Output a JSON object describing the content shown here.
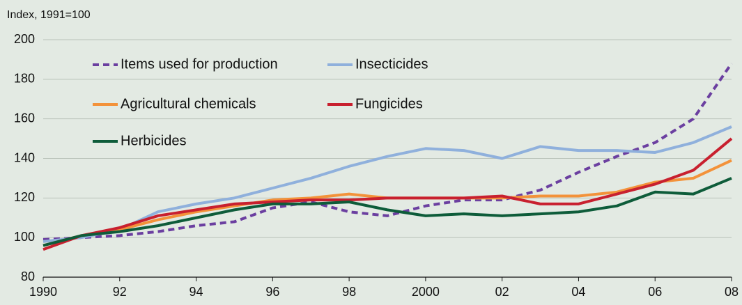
{
  "chart_data": {
    "type": "line",
    "y_axis_label": "Index, 1991=100",
    "x": [
      1990,
      1991,
      1992,
      1993,
      1994,
      1995,
      1996,
      1997,
      1998,
      1999,
      2000,
      2001,
      2002,
      2003,
      2004,
      2005,
      2006,
      2007,
      2008
    ],
    "xlim": [
      1990,
      2008
    ],
    "xticks": [
      1990,
      {
        "value": 1992,
        "label": "92"
      },
      {
        "value": 1994,
        "label": "94"
      },
      {
        "value": 1996,
        "label": "96"
      },
      {
        "value": 1998,
        "label": "98"
      },
      2000,
      {
        "value": 2002,
        "label": "02"
      },
      {
        "value": 2004,
        "label": "04"
      },
      {
        "value": 2006,
        "label": "06"
      },
      {
        "value": 2008,
        "label": "08"
      }
    ],
    "ylim": [
      80,
      200
    ],
    "yticks": [
      80,
      100,
      120,
      140,
      160,
      180,
      200
    ],
    "grid": true,
    "series": [
      {
        "name": "Items used for production",
        "color": "#6b3fa0",
        "dashed": true,
        "values": [
          99,
          100,
          101,
          103,
          106,
          108,
          115,
          118,
          113,
          111,
          116,
          119,
          119,
          124,
          133,
          141,
          148,
          160,
          188
        ]
      },
      {
        "name": "Insecticides",
        "color": "#8fb0dc",
        "values": [
          98,
          100,
          104,
          113,
          117,
          120,
          125,
          130,
          136,
          141,
          145,
          144,
          140,
          146,
          144,
          144,
          143,
          148,
          156
        ]
      },
      {
        "name": "Agricultural chemicals",
        "color": "#f3923a",
        "values": [
          96,
          101,
          104,
          109,
          113,
          116,
          119,
          120,
          122,
          120,
          120,
          120,
          120,
          121,
          121,
          123,
          128,
          130,
          139
        ]
      },
      {
        "name": "Fungicides",
        "color": "#c8202f",
        "values": [
          94,
          101,
          105,
          111,
          114,
          117,
          118,
          119,
          119,
          120,
          120,
          120,
          121,
          117,
          117,
          122,
          127,
          134,
          150
        ]
      },
      {
        "name": "Herbicides",
        "color": "#0e5c3a",
        "values": [
          96,
          101,
          103,
          106,
          110,
          114,
          117,
          117,
          118,
          114,
          111,
          112,
          111,
          112,
          113,
          116,
          123,
          122,
          130
        ]
      }
    ]
  }
}
